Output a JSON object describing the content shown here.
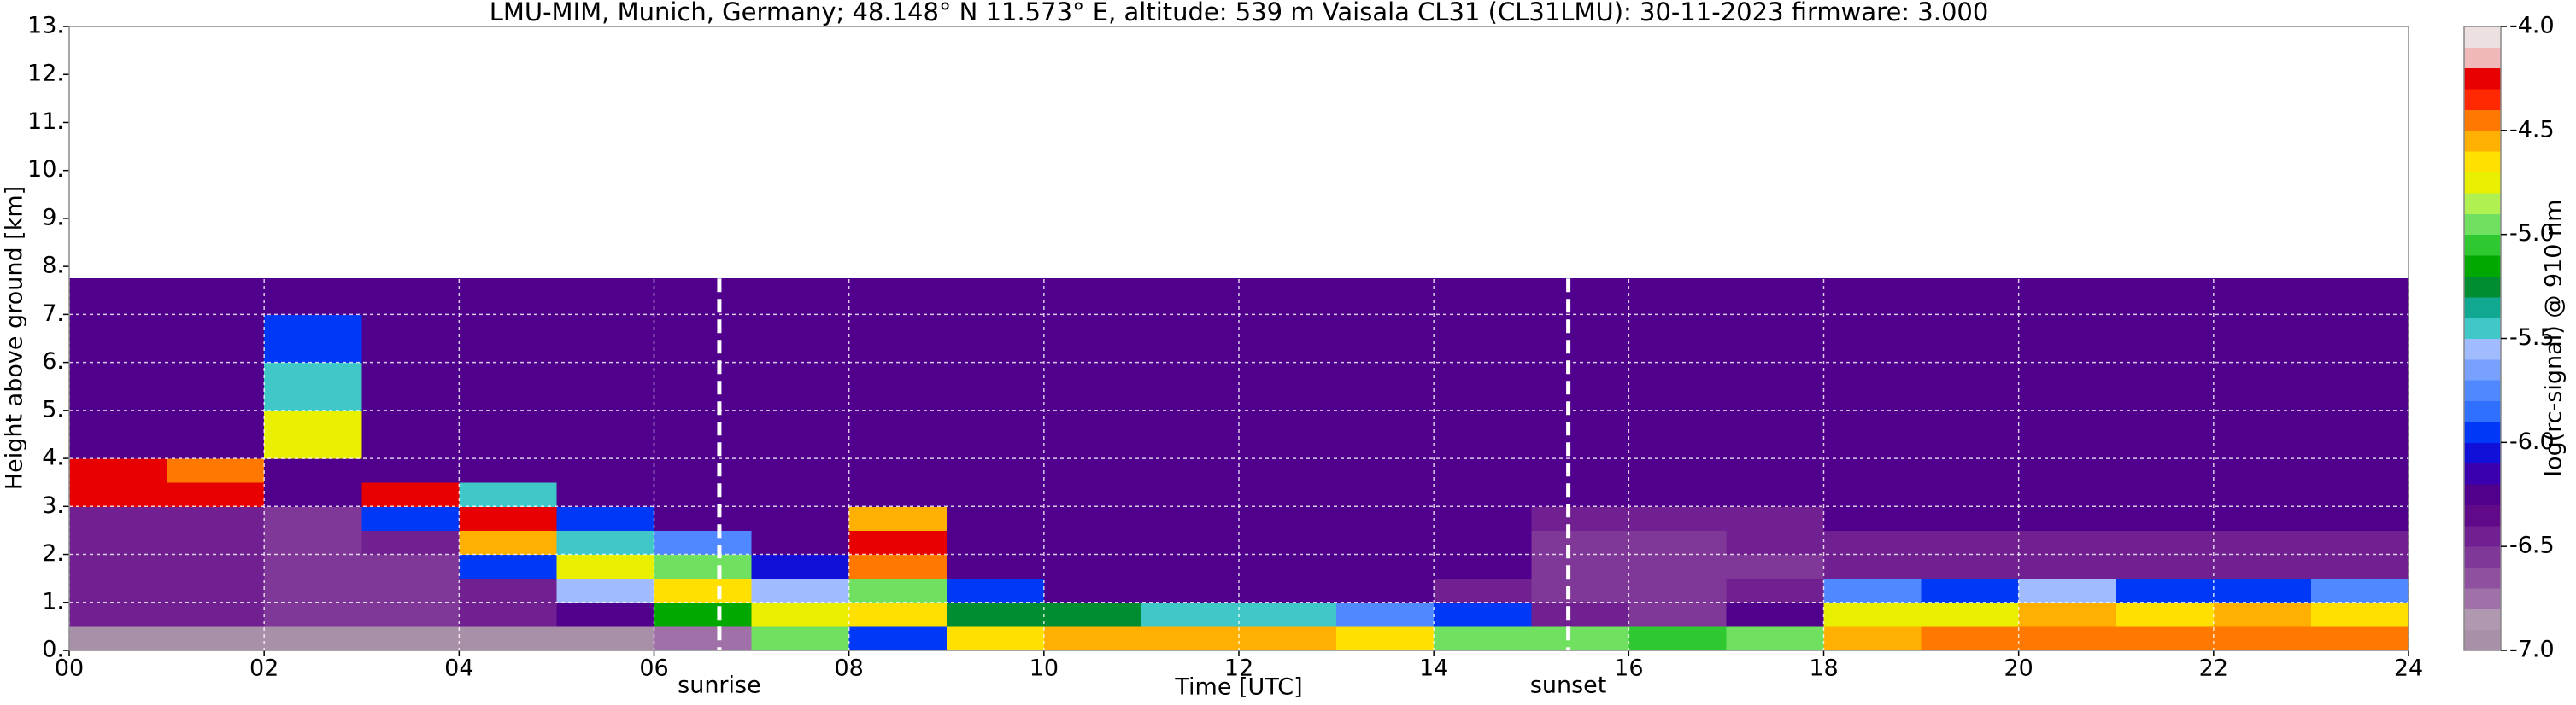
{
  "chart_data": {
    "type": "heatmap",
    "title": "LMU-MIM, Munich, Germany; 48.148° N 11.573° E, altitude: 539 m    Vaisala CL31 (CL31LMU): 30-11-2023    firmware: 3.000",
    "x_label": "Time [UTC]",
    "y_label": "Height above ground [km]",
    "colorbar_label": "log(rc-signal) @ 910 nm",
    "x_bins": [
      0,
      1,
      2,
      3,
      4,
      5,
      6,
      7,
      8,
      9,
      10,
      11,
      12,
      13,
      14,
      15,
      16,
      17,
      18,
      19,
      20,
      21,
      22,
      23,
      24
    ],
    "y_bins": [
      0,
      0.5,
      1,
      1.5,
      2,
      2.5,
      3,
      3.5,
      4,
      5,
      6,
      7,
      7.75
    ],
    "z": [
      [
        -6.9,
        -6.9,
        -6.9,
        -6.9,
        -6.9,
        -6.9,
        -6.7,
        -5.0,
        -5.9,
        -4.7,
        -4.6,
        -4.6,
        -4.6,
        -4.7,
        -5.0,
        -5.0,
        -5.1,
        -5.0,
        -4.6,
        -4.5,
        -4.4,
        -4.5,
        -4.5,
        -4.5
      ],
      [
        -6.4,
        -6.4,
        -6.6,
        -6.6,
        -6.5,
        -6.3,
        -5.2,
        -4.8,
        -4.7,
        -5.3,
        -5.3,
        -5.4,
        -5.5,
        -5.7,
        -6.0,
        -6.4,
        -6.6,
        -6.2,
        -4.8,
        -4.8,
        -4.6,
        -4.7,
        -4.6,
        -4.7
      ],
      [
        -6.4,
        -6.4,
        -6.6,
        -6.6,
        -6.4,
        -5.6,
        -4.7,
        -5.6,
        -4.9,
        -6.0,
        -6.3,
        -6.3,
        -6.3,
        -6.3,
        -6.4,
        -6.6,
        -6.6,
        -6.5,
        -5.8,
        -5.9,
        -5.6,
        -5.9,
        -5.9,
        -5.8
      ],
      [
        -6.4,
        -6.4,
        -6.6,
        -6.6,
        -6.0,
        -4.8,
        -4.9,
        -6.1,
        -4.5,
        -6.2,
        -6.3,
        -6.3,
        -6.3,
        -6.3,
        -6.3,
        -6.6,
        -6.6,
        -6.6,
        -6.4,
        -6.4,
        -6.4,
        -6.4,
        -6.4,
        -6.4
      ],
      [
        -6.4,
        -6.4,
        -6.6,
        -6.5,
        -4.6,
        -5.4,
        -5.8,
        -6.3,
        -4.2,
        -6.3,
        -6.3,
        -6.3,
        -6.3,
        -6.3,
        -6.3,
        -6.6,
        -6.6,
        -6.5,
        -6.4,
        -6.4,
        -6.4,
        -6.4,
        -6.4,
        -6.4
      ],
      [
        -6.4,
        -6.4,
        -6.6,
        -6.0,
        -4.2,
        -6.0,
        -6.3,
        -6.3,
        -4.6,
        -6.3,
        -6.3,
        -6.3,
        -6.3,
        -6.3,
        -6.3,
        -6.5,
        -6.5,
        -6.4,
        -6.3,
        -6.3,
        -6.3,
        -6.3,
        -6.3,
        -6.3
      ],
      [
        -4.3,
        -4.3,
        -6.3,
        -4.2,
        -5.5,
        -6.3,
        -6.3,
        -6.3,
        -6.3,
        -6.3,
        -6.3,
        -6.3,
        -6.3,
        -6.3,
        -6.3,
        -6.3,
        -6.3,
        -6.3,
        -6.3,
        -6.3,
        -6.3,
        -6.3,
        -6.3,
        -6.3
      ],
      [
        -4.2,
        -4.4,
        -6.3,
        -6.3,
        -6.3,
        -6.3,
        -6.3,
        -6.3,
        -6.3,
        -6.3,
        -6.3,
        -6.3,
        -6.3,
        -6.3,
        -6.3,
        -6.3,
        -6.3,
        -6.3,
        -6.3,
        -6.3,
        -6.3,
        -6.3,
        -6.3,
        -6.3
      ],
      [
        -6.3,
        -6.3,
        -4.8,
        -6.3,
        -6.3,
        -6.3,
        -6.3,
        -6.3,
        -6.3,
        -6.3,
        -6.3,
        -6.3,
        -6.3,
        -6.3,
        -6.3,
        -6.3,
        -6.3,
        -6.3,
        -6.3,
        -6.3,
        -6.3,
        -6.3,
        -6.3,
        -6.3
      ],
      [
        -6.3,
        -6.3,
        -5.4,
        -6.3,
        -6.3,
        -6.3,
        -6.3,
        -6.3,
        -6.3,
        -6.3,
        -6.3,
        -6.3,
        -6.3,
        -6.3,
        -6.3,
        -6.3,
        -6.3,
        -6.3,
        -6.3,
        -6.3,
        -6.3,
        -6.3,
        -6.3,
        -6.3
      ],
      [
        -6.3,
        -6.3,
        -5.9,
        -6.3,
        -6.3,
        -6.3,
        -6.3,
        -6.3,
        -6.3,
        -6.3,
        -6.3,
        -6.3,
        -6.3,
        -6.3,
        -6.3,
        -6.3,
        -6.3,
        -6.3,
        -6.3,
        -6.3,
        -6.3,
        -6.3,
        -6.3,
        -6.3
      ],
      [
        -6.3,
        -6.3,
        -6.3,
        -6.3,
        -6.3,
        -6.3,
        -6.3,
        -6.3,
        -6.3,
        -6.3,
        -6.3,
        -6.3,
        -6.3,
        -6.3,
        -6.3,
        -6.3,
        -6.3,
        -6.3,
        -6.3,
        -6.3,
        -6.3,
        -6.3,
        -6.3,
        -6.3
      ]
    ],
    "zlim": [
      -7,
      -4
    ],
    "colorscale": [
      "#a890a8",
      "#b098b0",
      "#a070a8",
      "#9050a0",
      "#803898",
      "#702090",
      "#600a8a",
      "#50008c",
      "#3a00b0",
      "#1010d8",
      "#0038f8",
      "#3070ff",
      "#5088ff",
      "#78a0ff",
      "#a0bcff",
      "#40c8c8",
      "#10a890",
      "#008c30",
      "#00a800",
      "#30c830",
      "#70e060",
      "#b0f050",
      "#e8f000",
      "#ffe000",
      "#ffb000",
      "#ff7800",
      "#ff2800",
      "#e80000",
      "#f0b8b8",
      "#ece0e0"
    ],
    "zticks": [
      {
        "value": -7,
        "label": "-7.0"
      },
      {
        "value": -6.5,
        "label": "-6.5"
      },
      {
        "value": -6,
        "label": "-6.0"
      },
      {
        "value": -5.5,
        "label": "-5.5"
      },
      {
        "value": -5,
        "label": "-5.0"
      },
      {
        "value": -4.5,
        "label": "-4.5"
      },
      {
        "value": -4,
        "label": "-4.0"
      }
    ],
    "xlim": [
      0,
      24
    ],
    "xticks": [
      {
        "value": 0,
        "label": "00"
      },
      {
        "value": 2,
        "label": "02"
      },
      {
        "value": 4,
        "label": "04"
      },
      {
        "value": 6,
        "label": "06"
      },
      {
        "value": 8,
        "label": "08"
      },
      10,
      12,
      14,
      16,
      18,
      20,
      22,
      24
    ],
    "ylim": [
      0,
      13
    ],
    "yticks": [
      {
        "value": 0,
        "label": "0."
      },
      {
        "value": 1,
        "label": "1."
      },
      {
        "value": 2,
        "label": "2."
      },
      {
        "value": 3,
        "label": "3."
      },
      {
        "value": 4,
        "label": "4."
      },
      {
        "value": 5,
        "label": "5."
      },
      {
        "value": 6,
        "label": "6."
      },
      {
        "value": 7,
        "label": "7."
      },
      {
        "value": 8,
        "label": "8."
      },
      {
        "value": 9,
        "label": "9."
      },
      {
        "value": 10,
        "label": "10."
      },
      {
        "value": 11,
        "label": "11."
      },
      {
        "value": 12,
        "label": "12."
      },
      {
        "value": 13,
        "label": "13."
      }
    ],
    "grid": true,
    "annotations": [
      {
        "x": 6.67,
        "text": "sunrise"
      },
      {
        "x": 15.38,
        "text": "sunset"
      }
    ]
  }
}
